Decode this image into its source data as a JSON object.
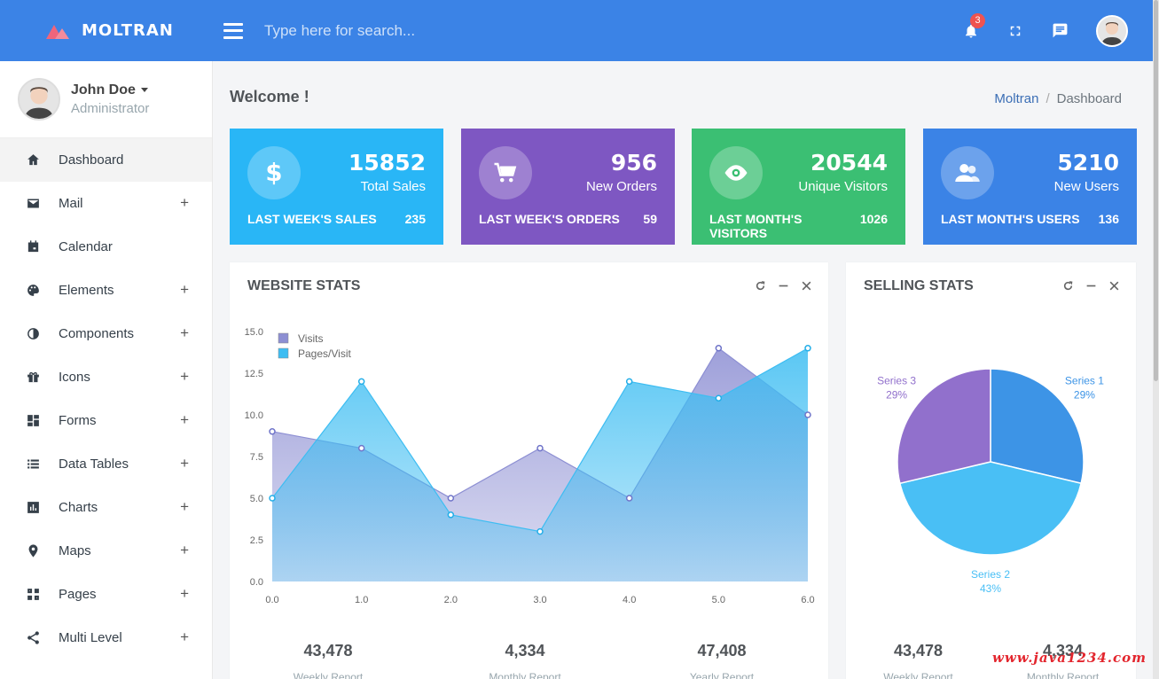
{
  "brand": {
    "name": "MOLTRAN"
  },
  "search": {
    "placeholder": "Type here for search..."
  },
  "topbar": {
    "notifications_count": "3"
  },
  "user": {
    "name": "John Doe",
    "role": "Administrator"
  },
  "sidebar": {
    "items": [
      {
        "label": "Dashboard",
        "icon": "home-icon",
        "expandable": false,
        "active": true
      },
      {
        "label": "Mail",
        "icon": "mail-icon",
        "expandable": true
      },
      {
        "label": "Calendar",
        "icon": "calendar-icon",
        "expandable": false
      },
      {
        "label": "Elements",
        "icon": "palette-icon",
        "expandable": true
      },
      {
        "label": "Components",
        "icon": "contrast-icon",
        "expandable": true
      },
      {
        "label": "Icons",
        "icon": "gift-icon",
        "expandable": true
      },
      {
        "label": "Forms",
        "icon": "dashboard-icon",
        "expandable": true
      },
      {
        "label": "Data Tables",
        "icon": "list-icon",
        "expandable": true
      },
      {
        "label": "Charts",
        "icon": "chart-icon",
        "expandable": true
      },
      {
        "label": "Maps",
        "icon": "pin-icon",
        "expandable": true
      },
      {
        "label": "Pages",
        "icon": "pages-icon",
        "expandable": true
      },
      {
        "label": "Multi Level",
        "icon": "share-icon",
        "expandable": true
      }
    ],
    "plus": "+"
  },
  "page": {
    "title": "Welcome !"
  },
  "breadcrumb": {
    "root": "Moltran",
    "sep": "/",
    "current": "Dashboard"
  },
  "cards": [
    {
      "value": "15852",
      "label": "Total Sales",
      "foot_label": "LAST WEEK'S SALES",
      "foot_value": "235",
      "color": "#29b6f6",
      "icon": "dollar-icon"
    },
    {
      "value": "956",
      "label": "New Orders",
      "foot_label": "LAST WEEK'S ORDERS",
      "foot_value": "59",
      "color": "#7e57c2",
      "icon": "cart-icon"
    },
    {
      "value": "20544",
      "label": "Unique Visitors",
      "foot_label": "LAST MONTH'S VISITORS",
      "foot_value": "1026",
      "color": "#3bbf73",
      "icon": "eye-icon"
    },
    {
      "value": "5210",
      "label": "New Users",
      "foot_label": "LAST MONTH'S USERS",
      "foot_value": "136",
      "color": "#3b83e6",
      "icon": "users-icon"
    }
  ],
  "website_stats": {
    "title": "WEBSITE STATS",
    "stats": [
      {
        "value": "43,478",
        "label": "Weekly Report"
      },
      {
        "value": "4,334",
        "label": "Monthly Report"
      },
      {
        "value": "47,408",
        "label": "Yearly Report"
      }
    ]
  },
  "selling_stats": {
    "title": "SELLING STATS",
    "stats": [
      {
        "value": "43,478",
        "label": "Weekly Report"
      },
      {
        "value": "4,334",
        "label": "Monthly Report"
      }
    ]
  },
  "chart_data": [
    {
      "type": "area",
      "x": [
        0,
        1,
        2,
        3,
        4,
        5,
        6
      ],
      "xticks": [
        "0.0",
        "1.0",
        "2.0",
        "3.0",
        "4.0",
        "5.0",
        "6.0"
      ],
      "yticks": [
        "0.0",
        "2.5",
        "5.0",
        "7.5",
        "10.0",
        "12.5",
        "15.0"
      ],
      "ylim": [
        0,
        15
      ],
      "xlim": [
        0,
        6
      ],
      "legend": "top-left",
      "series": [
        {
          "name": "Visits",
          "values": [
            9,
            8,
            5,
            8,
            5,
            14,
            10
          ],
          "color": "#8d8fd3"
        },
        {
          "name": "Pages/Visit",
          "values": [
            5,
            12,
            4,
            3,
            12,
            11,
            14
          ],
          "color": "#3dbdf2"
        }
      ]
    },
    {
      "type": "pie",
      "slices": [
        {
          "name": "Series 1",
          "pct_label": "29%",
          "value": 29,
          "color": "#3d94e6"
        },
        {
          "name": "Series 2",
          "pct_label": "43%",
          "value": 43,
          "color": "#49bff5"
        },
        {
          "name": "Series 3",
          "pct_label": "29%",
          "value": 29,
          "color": "#9170cc"
        }
      ]
    }
  ],
  "watermark": "www.java1234.com"
}
